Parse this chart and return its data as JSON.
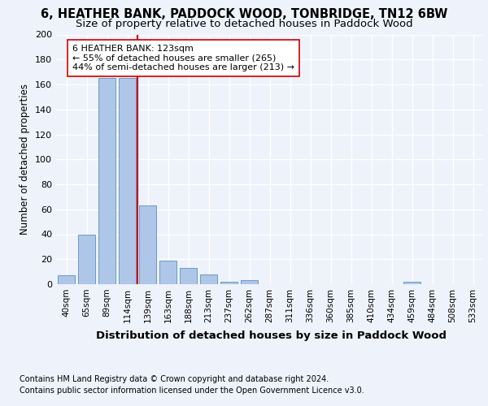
{
  "title1": "6, HEATHER BANK, PADDOCK WOOD, TONBRIDGE, TN12 6BW",
  "title2": "Size of property relative to detached houses in Paddock Wood",
  "xlabel": "Distribution of detached houses by size in Paddock Wood",
  "ylabel": "Number of detached properties",
  "categories": [
    "40sqm",
    "65sqm",
    "89sqm",
    "114sqm",
    "139sqm",
    "163sqm",
    "188sqm",
    "213sqm",
    "237sqm",
    "262sqm",
    "287sqm",
    "311sqm",
    "336sqm",
    "360sqm",
    "385sqm",
    "410sqm",
    "434sqm",
    "459sqm",
    "484sqm",
    "508sqm",
    "533sqm"
  ],
  "values": [
    7,
    40,
    165,
    165,
    63,
    19,
    13,
    8,
    2,
    3,
    0,
    0,
    0,
    0,
    0,
    0,
    0,
    2,
    0,
    0,
    0
  ],
  "bar_color": "#aec6e8",
  "bar_edge_color": "#5a8fc2",
  "red_line_x": 3.5,
  "red_line_color": "#cc0000",
  "annotation_text": "6 HEATHER BANK: 123sqm\n← 55% of detached houses are smaller (265)\n44% of semi-detached houses are larger (213) →",
  "annotation_box_color": "#ffffff",
  "annotation_box_edge": "#cc0000",
  "ylim": [
    0,
    200
  ],
  "yticks": [
    0,
    20,
    40,
    60,
    80,
    100,
    120,
    140,
    160,
    180,
    200
  ],
  "footnote1": "Contains HM Land Registry data © Crown copyright and database right 2024.",
  "footnote2": "Contains public sector information licensed under the Open Government Licence v3.0.",
  "background_color": "#eef2fa",
  "grid_color": "#ffffff",
  "title1_fontsize": 10.5,
  "title2_fontsize": 9.5,
  "xlabel_fontsize": 9.5,
  "ylabel_fontsize": 8.5,
  "annotation_fontsize": 8.0,
  "footnote_fontsize": 7.0,
  "tick_fontsize": 7.5,
  "ytick_fontsize": 8.0
}
